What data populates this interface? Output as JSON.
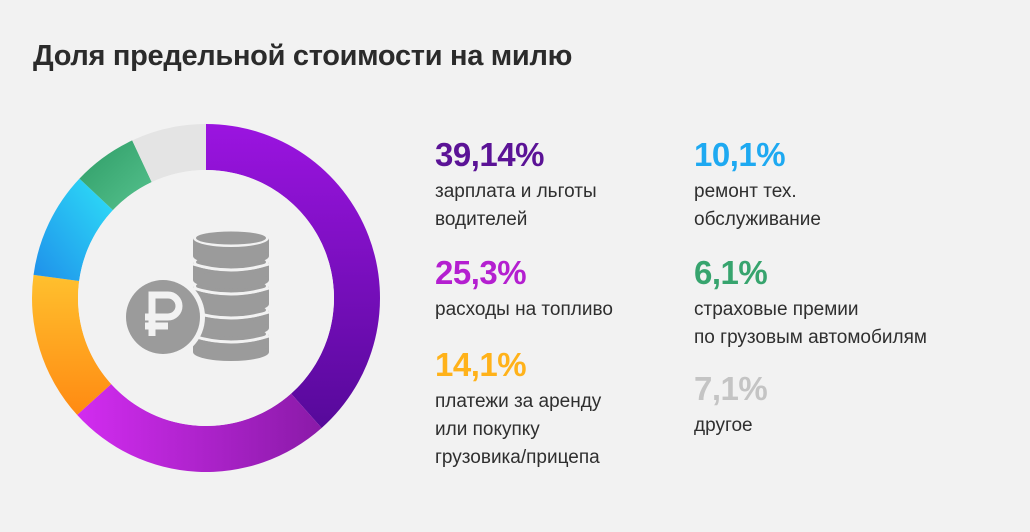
{
  "title": "Доля предельной стоимости на милю",
  "chart_data": {
    "type": "pie",
    "title": "Доля предельной стоимости на милю",
    "series": [
      {
        "name": "зарплата и льготы водителей",
        "value": 39.14,
        "label": "39,14%",
        "color": "#7b0fc4"
      },
      {
        "name": "расходы на топливо",
        "value": 25.3,
        "label": "25,3%",
        "color": "#c21ee0"
      },
      {
        "name": "платежи за аренду или покупку грузовика/прицепа",
        "value": 14.1,
        "label": "14,1%",
        "color": "#ffa51f"
      },
      {
        "name": "ремонт тех. обслуживание",
        "value": 10.1,
        "label": "10,1%",
        "color": "#22b0ef"
      },
      {
        "name": "страховые премии по грузовым автомобилям",
        "value": 6.1,
        "label": "6,1%",
        "color": "#3aa675"
      },
      {
        "name": "другое",
        "value": 7.1,
        "label": "7,1%",
        "color": "#c8c8c8"
      }
    ]
  },
  "stats": {
    "salary": {
      "pct": "39,14%",
      "label": "зарплата и льготы\nводителей",
      "color": "#5b1396"
    },
    "fuel": {
      "pct": "25,3%",
      "label": "расходы на топливо",
      "color": "#b41fd0"
    },
    "lease": {
      "pct": "14,1%",
      "label": "платежи за аренду\nили покупку\nгрузовика/прицепа",
      "color": "#ffb21a"
    },
    "repair": {
      "pct": "10,1%",
      "label": "ремонт тех.\nобслуживание",
      "color": "#1ea9f1"
    },
    "insurance": {
      "pct": "6,1%",
      "label": "страховые премии\nпо грузовым автомобилям",
      "color": "#37a46e"
    },
    "other": {
      "pct": "7,1%",
      "label": "другое",
      "color": "#c4c4c4"
    }
  },
  "icon": "ruble-coins-icon",
  "icon_color": "#9b9b9b"
}
